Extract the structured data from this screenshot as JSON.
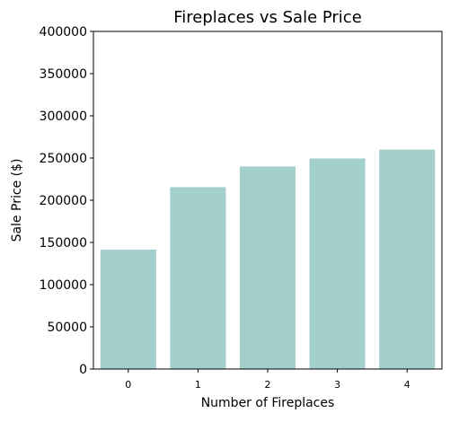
{
  "chart_data": {
    "type": "bar",
    "title": "Fireplaces vs Sale Price",
    "xlabel": "Number of Fireplaces",
    "ylabel": "Sale Price ($)",
    "categories": [
      "0",
      "1",
      "2",
      "3",
      "4"
    ],
    "values": [
      141500,
      215500,
      240000,
      249500,
      260000
    ],
    "ylim": [
      0,
      400000
    ],
    "yticks": [
      "0",
      "50000",
      "100000",
      "150000",
      "200000",
      "250000",
      "300000",
      "350000",
      "400000"
    ],
    "grid": false,
    "colors": {
      "bar": "#a3cfcd",
      "axis": "#000000",
      "background": "#ffffff"
    }
  }
}
